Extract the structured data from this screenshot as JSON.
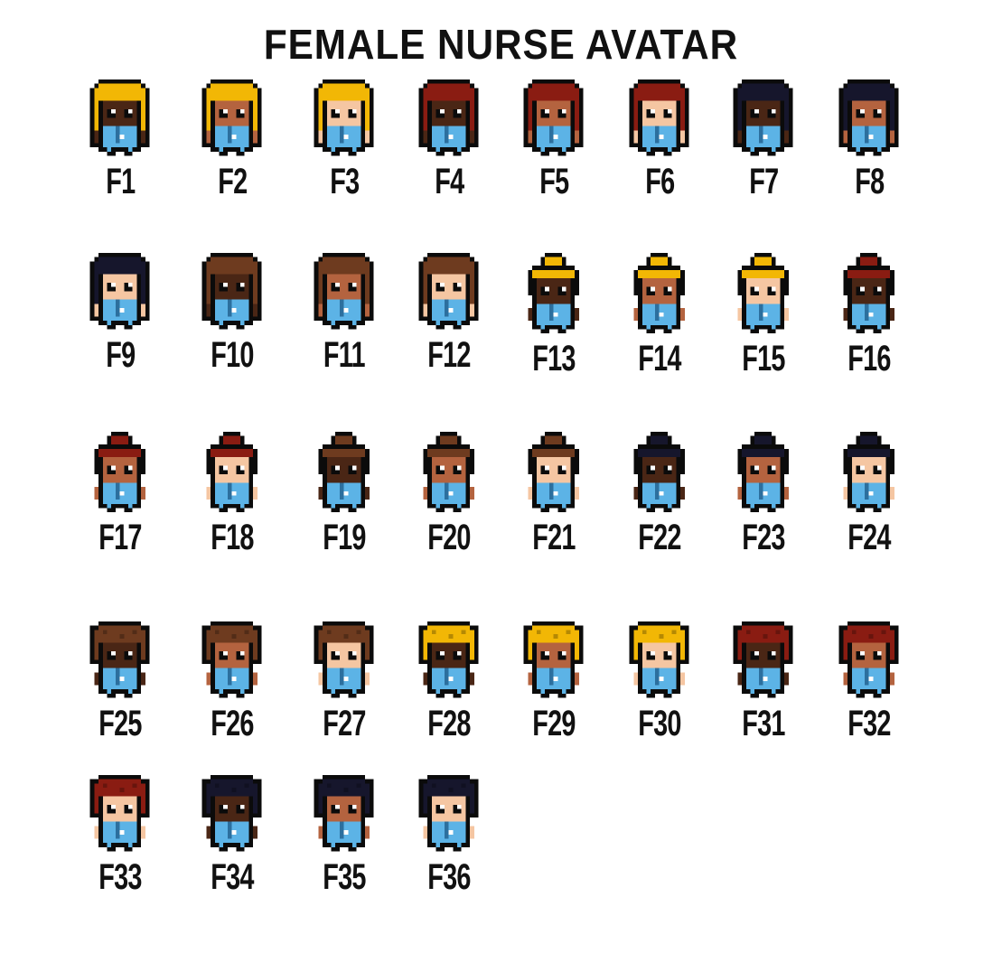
{
  "title": "FEMALE NURSE AVATAR",
  "colors": {
    "hair": {
      "blonde": "#f2b705",
      "red": "#8a1c12",
      "black": "#16162c",
      "brown": "#6e3b1f"
    },
    "skin": {
      "dark": "#4a2615",
      "medium": "#b4633f",
      "light": "#f5c6a2"
    },
    "scrubs": "#5cb3e6",
    "outline": "#0b0b0b"
  },
  "avatars": [
    {
      "label": "F1",
      "hair_style": "long",
      "hair": "blonde",
      "skin": "dark"
    },
    {
      "label": "F2",
      "hair_style": "long",
      "hair": "blonde",
      "skin": "medium"
    },
    {
      "label": "F3",
      "hair_style": "long",
      "hair": "blonde",
      "skin": "light"
    },
    {
      "label": "F4",
      "hair_style": "long",
      "hair": "red",
      "skin": "dark"
    },
    {
      "label": "F5",
      "hair_style": "long",
      "hair": "red",
      "skin": "medium"
    },
    {
      "label": "F6",
      "hair_style": "long",
      "hair": "red",
      "skin": "light"
    },
    {
      "label": "F7",
      "hair_style": "long",
      "hair": "black",
      "skin": "dark"
    },
    {
      "label": "F8",
      "hair_style": "long",
      "hair": "black",
      "skin": "medium"
    },
    {
      "label": "F9",
      "hair_style": "long",
      "hair": "black",
      "skin": "light"
    },
    {
      "label": "F10",
      "hair_style": "long",
      "hair": "brown",
      "skin": "dark"
    },
    {
      "label": "F11",
      "hair_style": "long",
      "hair": "brown",
      "skin": "medium"
    },
    {
      "label": "F12",
      "hair_style": "long",
      "hair": "brown",
      "skin": "light"
    },
    {
      "label": "F13",
      "hair_style": "bun",
      "hair": "blonde",
      "skin": "dark"
    },
    {
      "label": "F14",
      "hair_style": "bun",
      "hair": "blonde",
      "skin": "medium"
    },
    {
      "label": "F15",
      "hair_style": "bun",
      "hair": "blonde",
      "skin": "light"
    },
    {
      "label": "F16",
      "hair_style": "bun",
      "hair": "red",
      "skin": "dark"
    },
    {
      "label": "F17",
      "hair_style": "bun",
      "hair": "red",
      "skin": "medium"
    },
    {
      "label": "F18",
      "hair_style": "bun",
      "hair": "red",
      "skin": "light"
    },
    {
      "label": "F19",
      "hair_style": "bun",
      "hair": "brown",
      "skin": "dark"
    },
    {
      "label": "F20",
      "hair_style": "bun",
      "hair": "brown",
      "skin": "medium"
    },
    {
      "label": "F21",
      "hair_style": "bun",
      "hair": "brown",
      "skin": "light"
    },
    {
      "label": "F22",
      "hair_style": "bun",
      "hair": "black",
      "skin": "dark"
    },
    {
      "label": "F23",
      "hair_style": "bun",
      "hair": "black",
      "skin": "medium"
    },
    {
      "label": "F24",
      "hair_style": "bun",
      "hair": "black",
      "skin": "light"
    },
    {
      "label": "F25",
      "hair_style": "afro",
      "hair": "brown",
      "skin": "dark"
    },
    {
      "label": "F26",
      "hair_style": "afro",
      "hair": "brown",
      "skin": "medium"
    },
    {
      "label": "F27",
      "hair_style": "afro",
      "hair": "brown",
      "skin": "light"
    },
    {
      "label": "F28",
      "hair_style": "afro",
      "hair": "blonde",
      "skin": "dark"
    },
    {
      "label": "F29",
      "hair_style": "afro",
      "hair": "blonde",
      "skin": "medium"
    },
    {
      "label": "F30",
      "hair_style": "afro",
      "hair": "blonde",
      "skin": "light"
    },
    {
      "label": "F31",
      "hair_style": "afro",
      "hair": "red",
      "skin": "dark"
    },
    {
      "label": "F32",
      "hair_style": "afro",
      "hair": "red",
      "skin": "medium"
    },
    {
      "label": "F33",
      "hair_style": "afro",
      "hair": "red",
      "skin": "light"
    },
    {
      "label": "F34",
      "hair_style": "afro",
      "hair": "black",
      "skin": "dark"
    },
    {
      "label": "F35",
      "hair_style": "afro",
      "hair": "black",
      "skin": "medium"
    },
    {
      "label": "F36",
      "hair_style": "afro",
      "hair": "black",
      "skin": "light"
    }
  ]
}
